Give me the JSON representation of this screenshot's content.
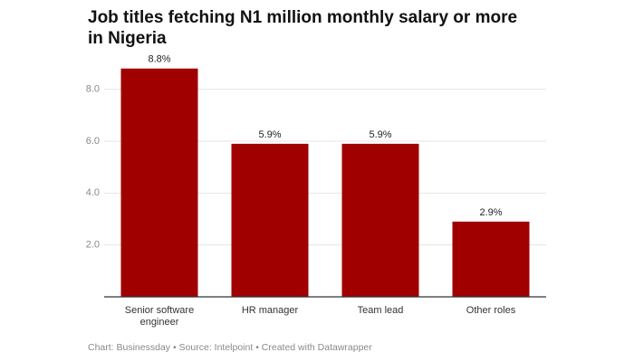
{
  "chart_data": {
    "type": "bar",
    "title": "Job titles fetching N1 million monthly salary or more in Nigeria",
    "categories": [
      "Senior software engineer",
      "HR manager",
      "Team lead",
      "Other roles"
    ],
    "values": [
      8.8,
      5.9,
      5.9,
      2.9
    ],
    "value_labels": [
      "8.8%",
      "5.9%",
      "5.9%",
      "2.9%"
    ],
    "color": "#a00000",
    "ylim": [
      0,
      9
    ],
    "yticks": [
      {
        "value": 2,
        "label": "2.0"
      },
      {
        "value": 4,
        "label": "4.0"
      },
      {
        "value": 6,
        "label": "6.0"
      },
      {
        "value": 8,
        "label": "8.0"
      }
    ],
    "grid": true,
    "footer": "Chart: Businessday • Source: Intelpoint • Created with Datawrapper"
  }
}
